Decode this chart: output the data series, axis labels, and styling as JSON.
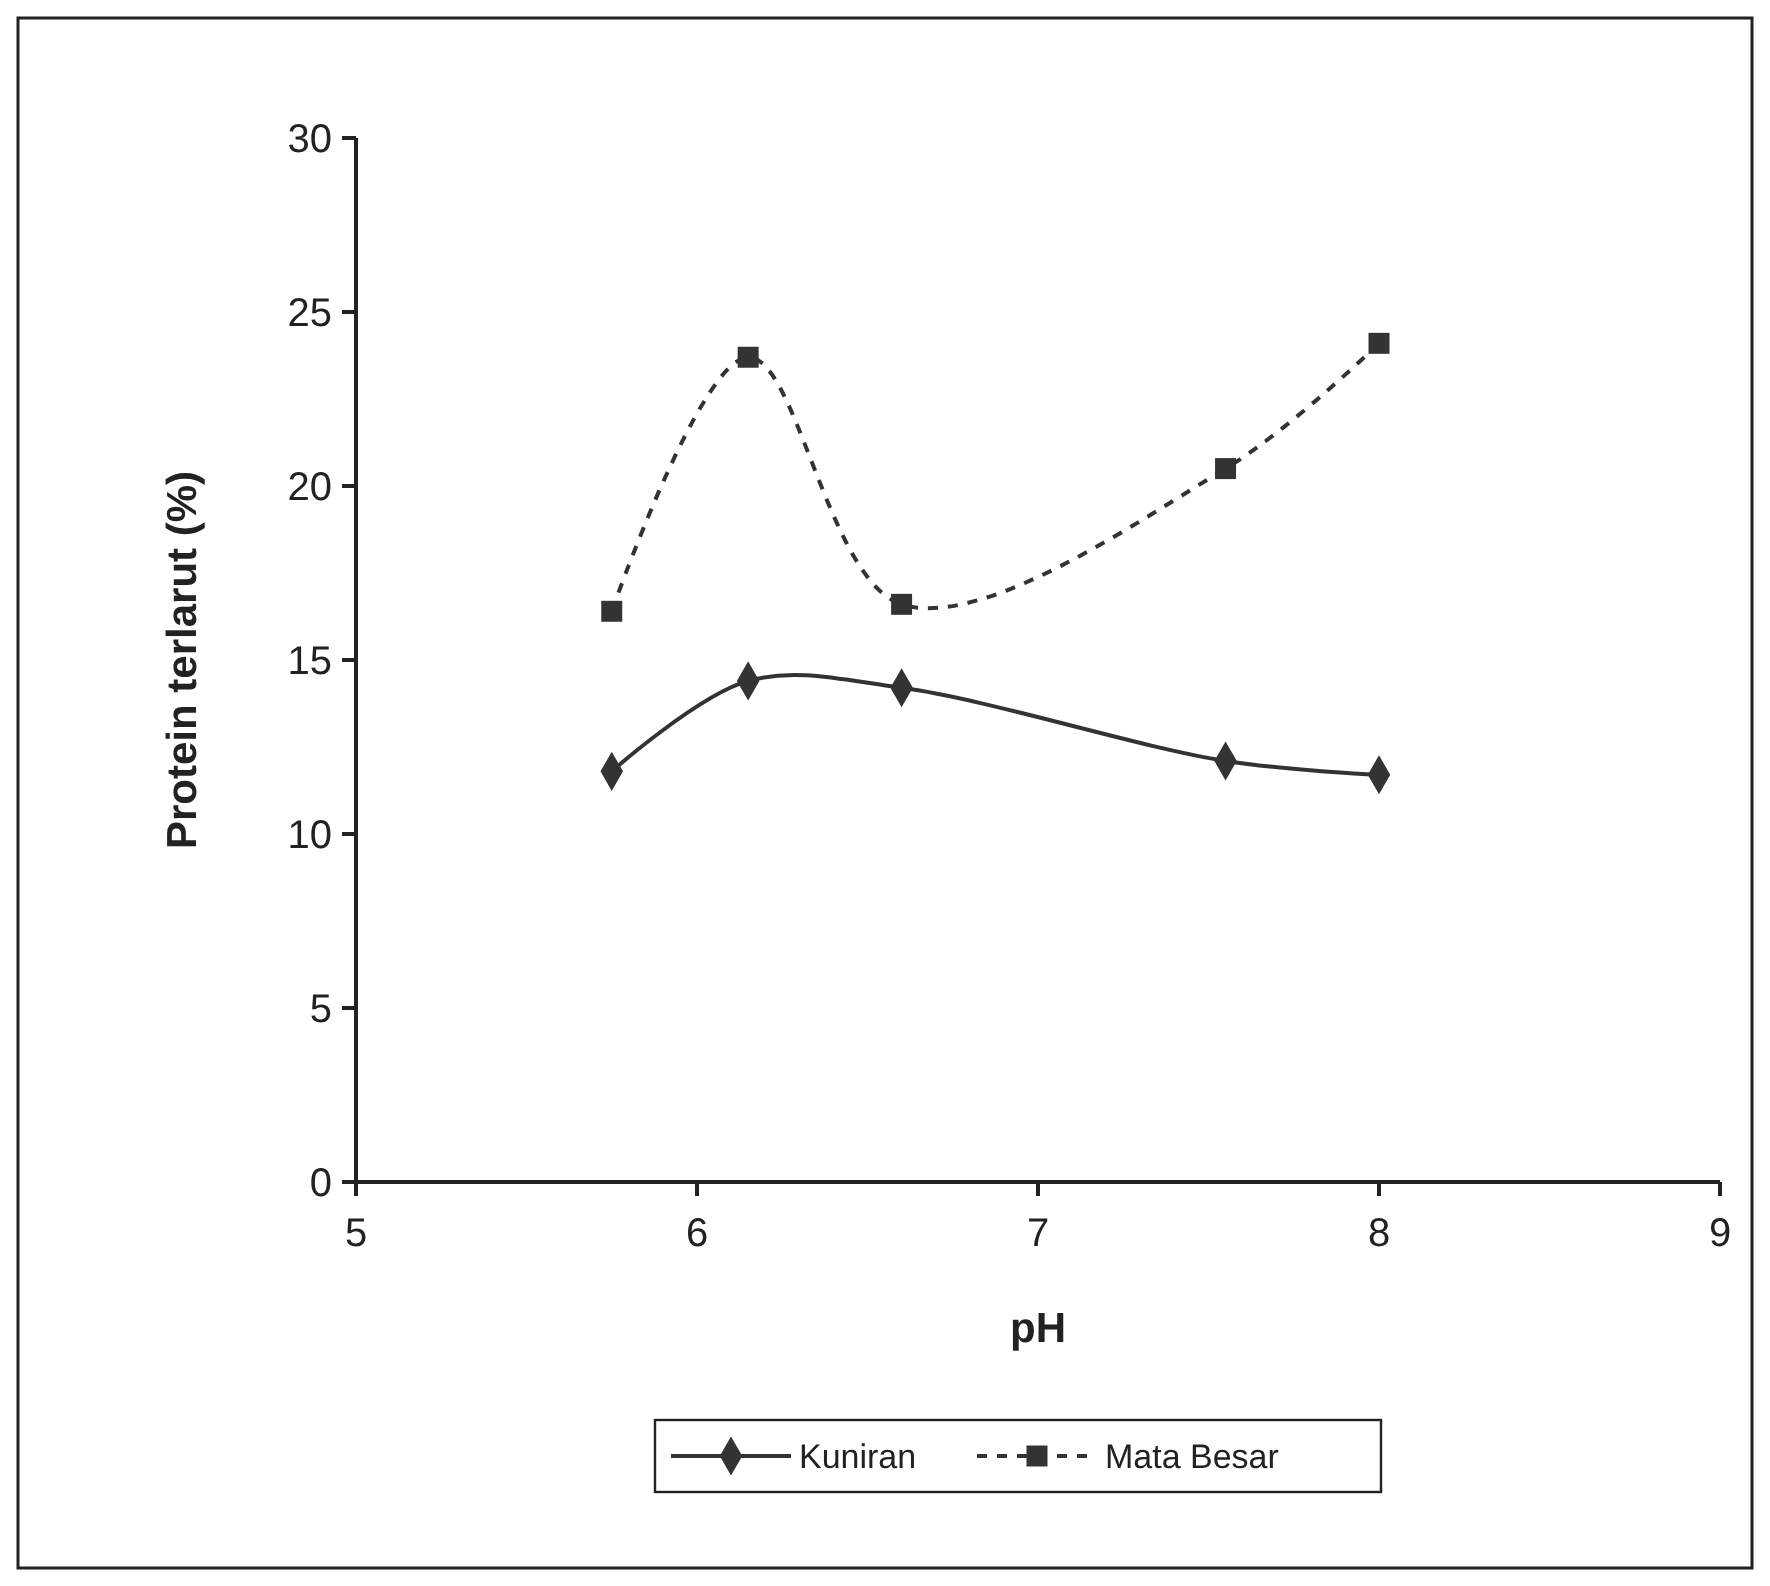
{
  "chart_data": {
    "type": "line",
    "xlabel": "pH",
    "ylabel": "Protein terlarut (%)",
    "xlim": [
      5,
      9
    ],
    "xticks": [
      5,
      6,
      7,
      8,
      9
    ],
    "ylim": [
      0,
      30
    ],
    "yticks": [
      0,
      5,
      10,
      15,
      20,
      25,
      30
    ],
    "grid": false,
    "legend": "bottom",
    "series": [
      {
        "name": "Kuniran",
        "color": "#333333",
        "marker": "diamond",
        "line_style": "solid",
        "x": [
          5.75,
          6.15,
          6.6,
          7.55,
          8.0
        ],
        "values": [
          11.8,
          14.4,
          14.2,
          12.1,
          11.7
        ]
      },
      {
        "name": "Mata Besar",
        "color": "#333333",
        "marker": "square",
        "line_style": "dashed",
        "x": [
          5.75,
          6.15,
          6.6,
          7.55,
          8.0
        ],
        "values": [
          16.4,
          23.7,
          16.6,
          20.5,
          24.1
        ]
      }
    ]
  }
}
